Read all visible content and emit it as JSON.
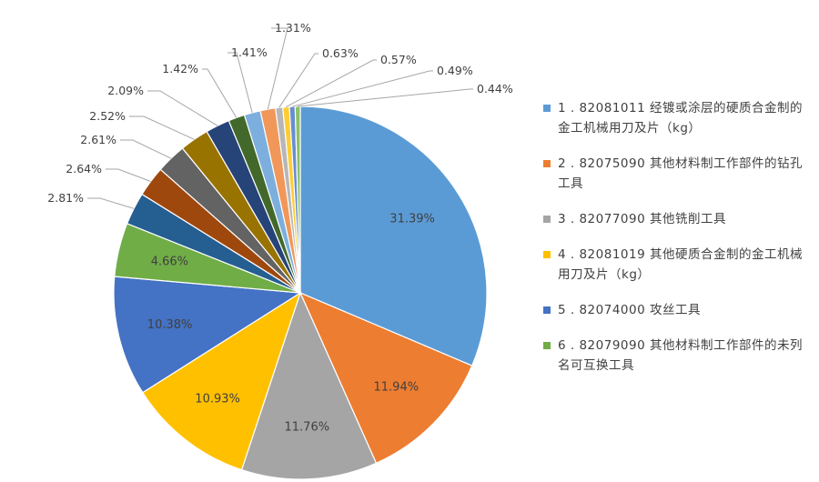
{
  "chart_data": {
    "type": "pie",
    "title": "",
    "slices": [
      {
        "label": "31.39%",
        "value": 31.39,
        "color": "#5b9bd5"
      },
      {
        "label": "11.94%",
        "value": 11.94,
        "color": "#ed7d31"
      },
      {
        "label": "11.76%",
        "value": 11.76,
        "color": "#a5a5a5"
      },
      {
        "label": "10.93%",
        "value": 10.93,
        "color": "#ffc000"
      },
      {
        "label": "10.38%",
        "value": 10.38,
        "color": "#4472c4"
      },
      {
        "label": "4.66%",
        "value": 4.66,
        "color": "#70ad47"
      },
      {
        "label": "2.81%",
        "value": 2.81,
        "color": "#255e91"
      },
      {
        "label": "2.64%",
        "value": 2.64,
        "color": "#9e480e"
      },
      {
        "label": "2.61%",
        "value": 2.61,
        "color": "#636363"
      },
      {
        "label": "2.52%",
        "value": 2.52,
        "color": "#997300"
      },
      {
        "label": "2.09%",
        "value": 2.09,
        "color": "#264478"
      },
      {
        "label": "1.42%",
        "value": 1.42,
        "color": "#43682b"
      },
      {
        "label": "1.41%",
        "value": 1.41,
        "color": "#7cafdd"
      },
      {
        "label": "1.31%",
        "value": 1.31,
        "color": "#f1975a"
      },
      {
        "label": "0.63%",
        "value": 0.63,
        "color": "#b7b7b7"
      },
      {
        "label": "0.57%",
        "value": 0.57,
        "color": "#ffcd33"
      },
      {
        "label": "0.49%",
        "value": 0.49,
        "color": "#698ed0"
      },
      {
        "label": "0.44%",
        "value": 0.44,
        "color": "#8cc168"
      }
    ],
    "legend": {
      "position": "right",
      "entries": [
        {
          "text": "1 . 82081011 经镀或涂层的硬质合金制的金工机械用刀及片（kg）",
          "color": "#5b9bd5"
        },
        {
          "text": "2 . 82075090 其他材料制工作部件的钻孔工具",
          "color": "#ed7d31"
        },
        {
          "text": "3 . 82077090 其他铣削工具",
          "color": "#a5a5a5"
        },
        {
          "text": "4 . 82081019 其他硬质合金制的金工机械用刀及片（kg）",
          "color": "#ffc000"
        },
        {
          "text": "5 . 82074000 攻丝工具",
          "color": "#4472c4"
        },
        {
          "text": "6 . 82079090 其他材料制工作部件的未列名可互换工具",
          "color": "#70ad47"
        }
      ]
    }
  }
}
